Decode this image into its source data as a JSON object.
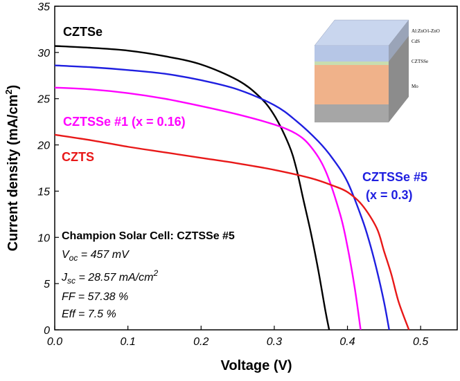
{
  "chart_data": {
    "type": "line",
    "xlabel": "Voltage (V)",
    "ylabel_main": "Current density (mA/cm",
    "ylabel_sup": "2",
    "ylabel_close": ")",
    "xlim": [
      0.0,
      0.55
    ],
    "ylim": [
      0,
      35
    ],
    "x_ticks": [
      "0.0",
      "0.1",
      "0.2",
      "0.3",
      "0.4",
      "0.5"
    ],
    "y_ticks": [
      "0",
      "5",
      "10",
      "15",
      "20",
      "25",
      "30",
      "35"
    ],
    "grid": false,
    "series": [
      {
        "name": "CZTSe",
        "color": "#000000",
        "x": [
          0.0,
          0.05,
          0.1,
          0.15,
          0.2,
          0.25,
          0.28,
          0.3,
          0.32,
          0.33,
          0.34,
          0.35,
          0.36,
          0.37,
          0.375
        ],
        "y": [
          30.7,
          30.5,
          30.2,
          29.6,
          28.7,
          27.0,
          25.2,
          23.2,
          20.0,
          17.5,
          14.0,
          10.5,
          6.5,
          2.0,
          0.0
        ]
      },
      {
        "name": "CZTSSe #5",
        "color": "#1f1fe0",
        "x": [
          0.0,
          0.05,
          0.1,
          0.15,
          0.2,
          0.25,
          0.3,
          0.33,
          0.36,
          0.38,
          0.4,
          0.42,
          0.43,
          0.44,
          0.45,
          0.457
        ],
        "y": [
          28.6,
          28.4,
          28.1,
          27.7,
          27.0,
          26.0,
          24.3,
          22.6,
          20.4,
          18.5,
          16.0,
          12.0,
          9.5,
          6.5,
          3.0,
          0.0
        ]
      },
      {
        "name": "CZTSSe #1 (x = 0.16)",
        "color": "#ff00ff",
        "x": [
          0.0,
          0.05,
          0.1,
          0.15,
          0.2,
          0.25,
          0.3,
          0.33,
          0.35,
          0.37,
          0.39,
          0.4,
          0.41,
          0.418
        ],
        "y": [
          26.2,
          26.0,
          25.6,
          25.0,
          24.2,
          23.3,
          22.2,
          21.2,
          19.8,
          17.2,
          12.5,
          9.0,
          4.5,
          0.0
        ]
      },
      {
        "name": "CZTS",
        "color": "#e81818",
        "x": [
          0.0,
          0.05,
          0.1,
          0.15,
          0.2,
          0.25,
          0.3,
          0.35,
          0.38,
          0.4,
          0.42,
          0.44,
          0.45,
          0.46,
          0.47,
          0.484
        ],
        "y": [
          21.1,
          20.5,
          19.8,
          19.2,
          18.6,
          18.0,
          17.3,
          16.4,
          15.6,
          14.9,
          13.5,
          11.0,
          8.5,
          6.0,
          3.0,
          0.0
        ]
      }
    ],
    "series_labels": {
      "czts_e": "CZTSe",
      "czts_se1": "CZTSSe #1 (x = 0.16)",
      "czts": "CZTS",
      "czts_se5_line1": "CZTSSe #5",
      "czts_se5_line2": "(x = 0.3)"
    },
    "info_box": {
      "title": "Champion Solar Cell: CZTSSe #5",
      "voc_symbol": "V",
      "voc_sub": "oc",
      "voc_value": " = 457 mV",
      "jsc_symbol": "J",
      "jsc_sub": "sc",
      "jsc_value": " = 28.57 mA/cm",
      "jsc_sup": "2",
      "ff_line": "FF = 57.38 %",
      "eff_line": "Eff = 7.5 %"
    },
    "device_stack": {
      "layers": [
        {
          "label": "Al:ZnO/i-ZnO",
          "color": "#b6c6e6"
        },
        {
          "label": "CdS",
          "color": "#c8ddb0"
        },
        {
          "label": "CZTSSe",
          "color": "#f0b28a"
        },
        {
          "label": "Mo",
          "color": "#a6a6a6"
        }
      ]
    }
  }
}
